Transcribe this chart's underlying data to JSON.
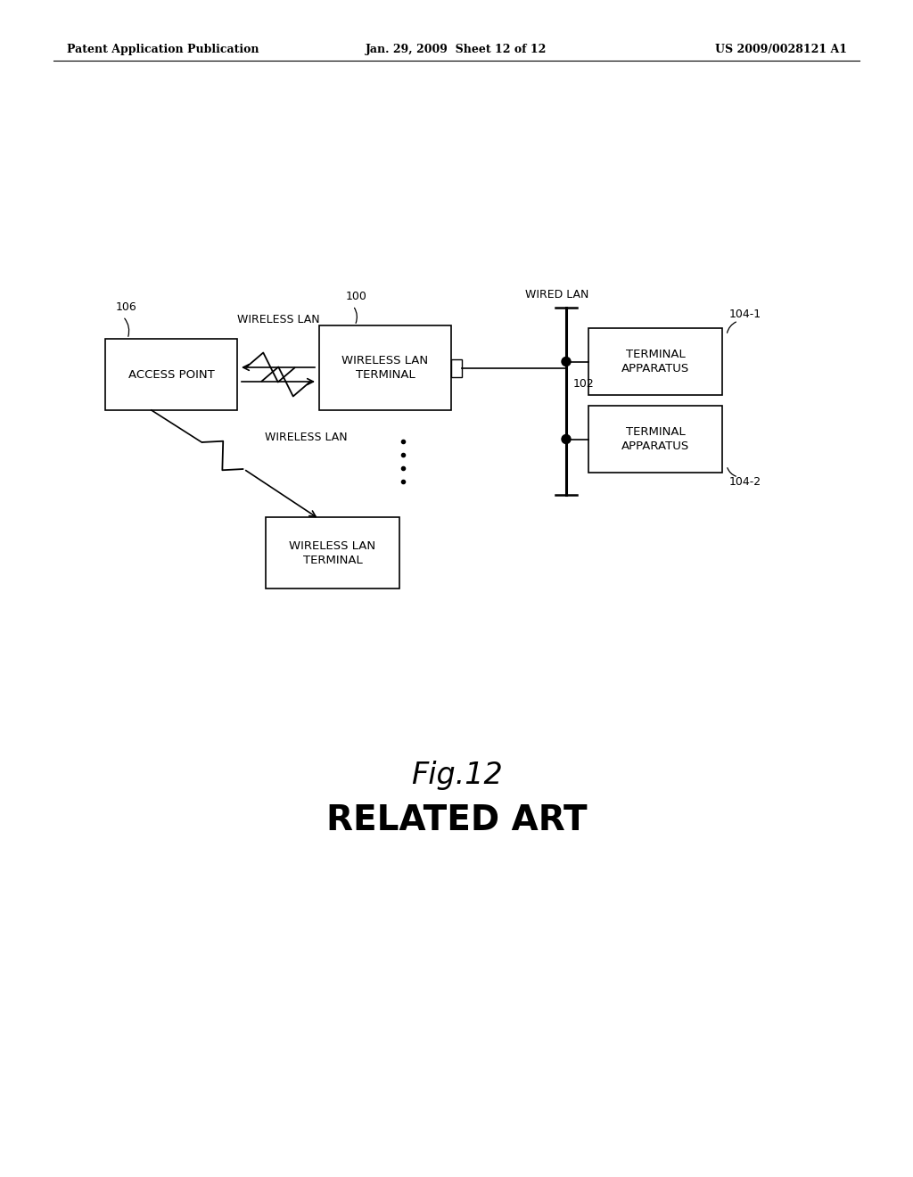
{
  "background_color": "#ffffff",
  "header_left": "Patent Application Publication",
  "header_center": "Jan. 29, 2009  Sheet 12 of 12",
  "header_right": "US 2009/0028121 A1",
  "fig_label": "Fig.12",
  "fig_sublabel": "RELATED ART"
}
